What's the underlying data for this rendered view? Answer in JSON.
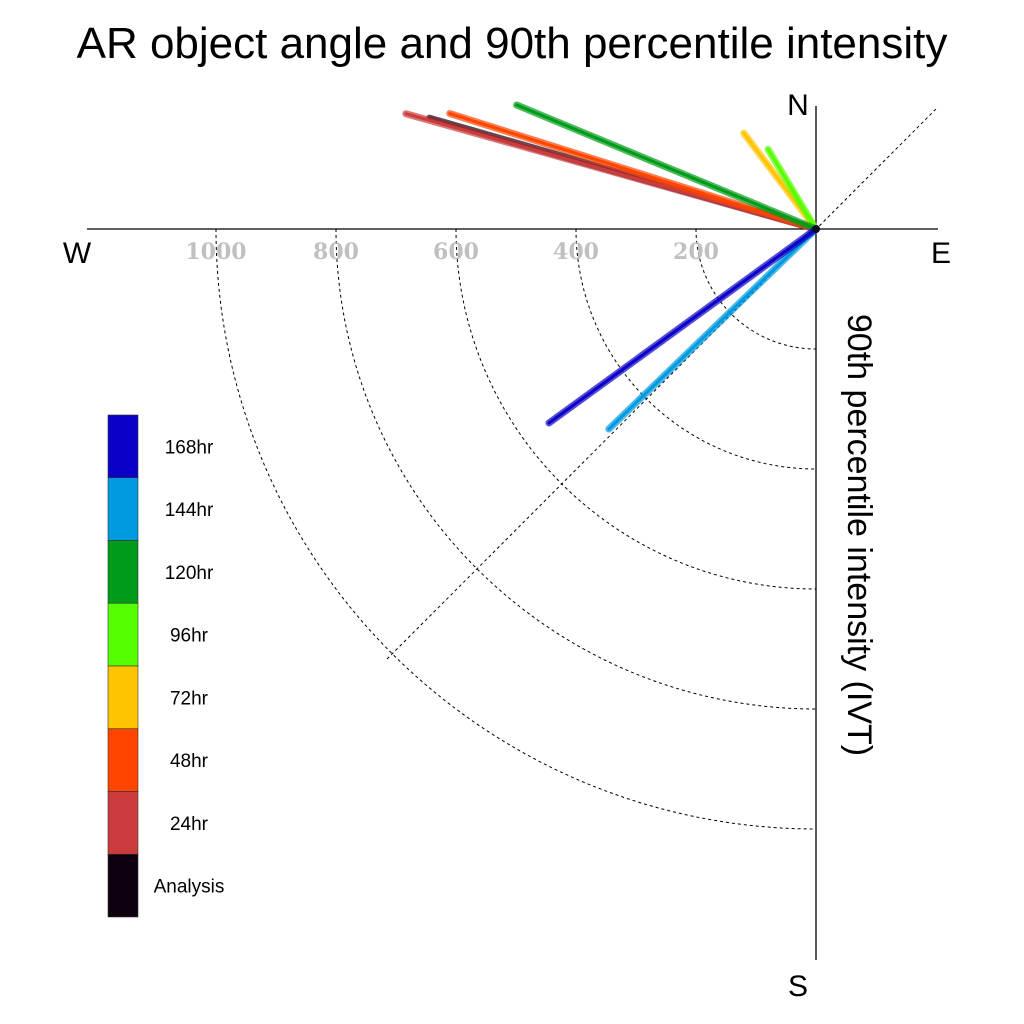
{
  "chart_data": {
    "type": "polar-vector",
    "title": "AR object angle and 90th percentile intensity",
    "ylabel": "90th percentile intensity (IVT)",
    "compass": {
      "north": "N",
      "south": "S",
      "east": "E",
      "west": "W"
    },
    "radial_ticks": [
      {
        "value": 200,
        "label": "200"
      },
      {
        "value": 400,
        "label": "400"
      },
      {
        "value": 600,
        "label": "600"
      },
      {
        "value": 800,
        "label": "800"
      },
      {
        "value": 1000,
        "label": "1000"
      }
    ],
    "rlim": [
      0,
      1200
    ],
    "grid": true,
    "legend_position": "left",
    "series": [
      {
        "name": "Analysis",
        "color": "#0f000f",
        "angle_deg": 74.0,
        "intensity": 670
      },
      {
        "name": "24hr",
        "color": "#cc3c3c",
        "angle_deg": 74.3,
        "intensity": 710
      },
      {
        "name": "48hr",
        "color": "#ff4500",
        "angle_deg": 72.5,
        "intensity": 640
      },
      {
        "name": "72hr",
        "color": "#ffc400",
        "angle_deg": 37.0,
        "intensity": 200
      },
      {
        "name": "96hr",
        "color": "#55ff00",
        "angle_deg": 31.0,
        "intensity": 155
      },
      {
        "name": "120hr",
        "color": "#009b19",
        "angle_deg": 67.5,
        "intensity": 540
      },
      {
        "name": "144hr",
        "color": "#009ae0",
        "angle_deg": 134.0,
        "intensity": 480
      },
      {
        "name": "168hr",
        "color": "#0b00c8",
        "angle_deg": 126.0,
        "intensity": 550
      }
    ]
  }
}
